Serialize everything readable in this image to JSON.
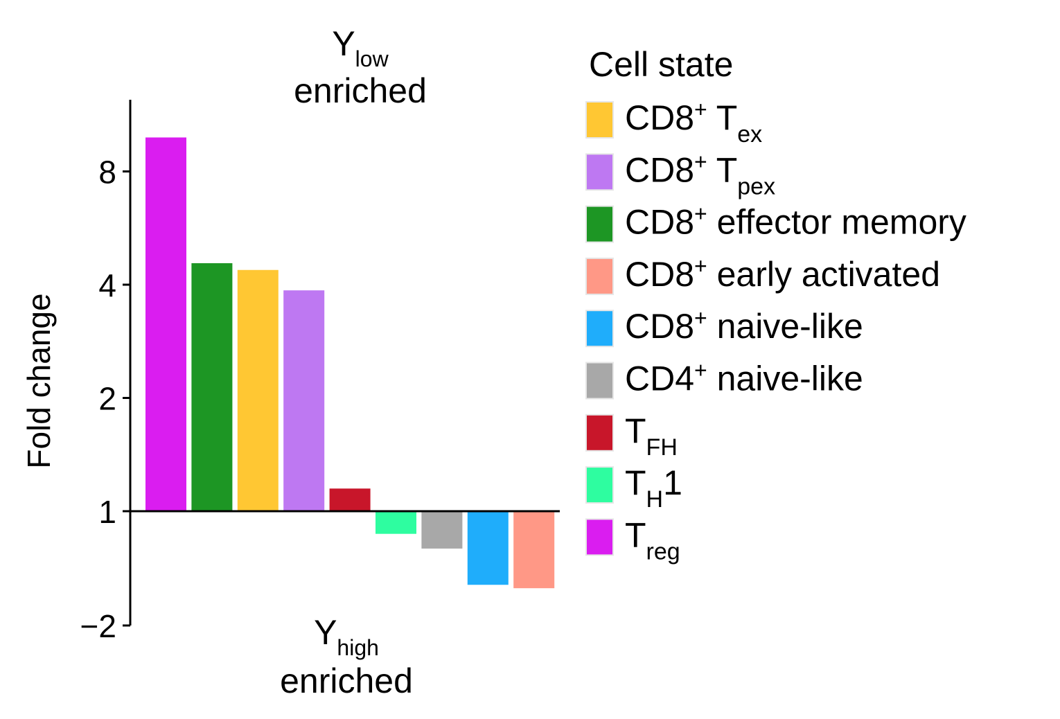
{
  "chart_data": {
    "type": "bar",
    "scale": "log2",
    "ylabel": "Fold change",
    "yticks": [
      {
        "value": -2,
        "label": "−2"
      },
      {
        "value": 1,
        "label": "1"
      },
      {
        "value": 2,
        "label": "2"
      },
      {
        "value": 4,
        "label": "4"
      },
      {
        "value": 8,
        "label": "8"
      }
    ],
    "ylim_log2": [
      -1.0,
      3.4
    ],
    "baseline": 1,
    "annotations": {
      "top": {
        "main": "Y",
        "sub": "low",
        "line2": "enriched"
      },
      "bottom": {
        "main": "Y",
        "sub": "high",
        "line2": "enriched"
      }
    },
    "legend": {
      "title": "Cell state",
      "placement": "right",
      "entries": [
        {
          "key": "cd8_tex",
          "parts": [
            {
              "t": "CD8"
            },
            {
              "t": "+",
              "s": "sup"
            },
            {
              "t": " T"
            },
            {
              "t": "ex",
              "s": "sub"
            }
          ],
          "color": "#FFC733"
        },
        {
          "key": "cd8_tpex",
          "parts": [
            {
              "t": "CD8"
            },
            {
              "t": "+",
              "s": "sup"
            },
            {
              "t": " T"
            },
            {
              "t": "pex",
              "s": "sub"
            }
          ],
          "color": "#BE78F2"
        },
        {
          "key": "cd8_em",
          "parts": [
            {
              "t": "CD8"
            },
            {
              "t": "+",
              "s": "sup"
            },
            {
              "t": " effector memory"
            }
          ],
          "color": "#1D9624"
        },
        {
          "key": "cd8_early",
          "parts": [
            {
              "t": "CD8"
            },
            {
              "t": "+",
              "s": "sup"
            },
            {
              "t": " early activated"
            }
          ],
          "color": "#FF9886"
        },
        {
          "key": "cd8_naive",
          "parts": [
            {
              "t": "CD8"
            },
            {
              "t": "+",
              "s": "sup"
            },
            {
              "t": " naive-like"
            }
          ],
          "color": "#1FADFB"
        },
        {
          "key": "cd4_naive",
          "parts": [
            {
              "t": "CD4"
            },
            {
              "t": "+",
              "s": "sup"
            },
            {
              "t": " naive-like"
            }
          ],
          "color": "#A8A8A8"
        },
        {
          "key": "tfh",
          "parts": [
            {
              "t": "T"
            },
            {
              "t": "FH",
              "s": "sub"
            }
          ],
          "color": "#C8162A"
        },
        {
          "key": "th1",
          "parts": [
            {
              "t": "T"
            },
            {
              "t": "H",
              "s": "sub"
            },
            {
              "t": "1"
            }
          ],
          "color": "#2EFDA0"
        },
        {
          "key": "treg",
          "parts": [
            {
              "t": "T"
            },
            {
              "t": "reg",
              "s": "sub"
            }
          ],
          "color": "#DA1DF0"
        }
      ]
    },
    "bars": [
      {
        "key": "treg",
        "log2fc": 3.3
      },
      {
        "key": "cd8_em",
        "log2fc": 2.19
      },
      {
        "key": "cd8_tex",
        "log2fc": 2.13
      },
      {
        "key": "cd8_tpex",
        "log2fc": 1.95
      },
      {
        "key": "tfh",
        "log2fc": 0.2
      },
      {
        "key": "th1",
        "log2fc": -0.2
      },
      {
        "key": "cd4_naive",
        "log2fc": -0.33
      },
      {
        "key": "cd8_naive",
        "log2fc": -0.65
      },
      {
        "key": "cd8_early",
        "log2fc": -0.68
      }
    ]
  }
}
